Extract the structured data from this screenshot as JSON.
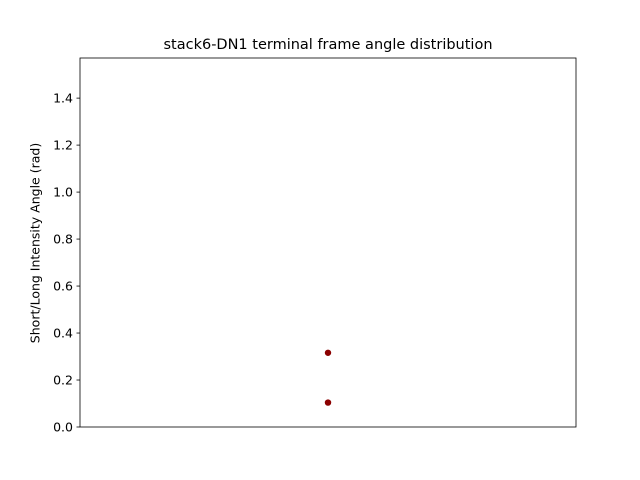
{
  "chart_data": {
    "type": "scatter",
    "title": "stack6-DN1 terminal frame angle distribution",
    "xlabel": "",
    "ylabel": "Short/Long Intensity Angle (rad)",
    "ylim": [
      0,
      1.5708
    ],
    "yticks": [
      0.0,
      0.2,
      0.4,
      0.6,
      0.8,
      1.0,
      1.2,
      1.4
    ],
    "ytick_labels": [
      "0.0",
      "0.2",
      "0.4",
      "0.6",
      "0.8",
      "1.0",
      "1.2",
      "1.4"
    ],
    "xlim": [
      -1,
      1
    ],
    "xticks": [],
    "grid": false,
    "legend": "none",
    "series": [
      {
        "color": "#8b0000",
        "points": [
          {
            "x": 0,
            "y": 0.316
          },
          {
            "x": 0,
            "y": 0.104
          }
        ]
      }
    ]
  }
}
